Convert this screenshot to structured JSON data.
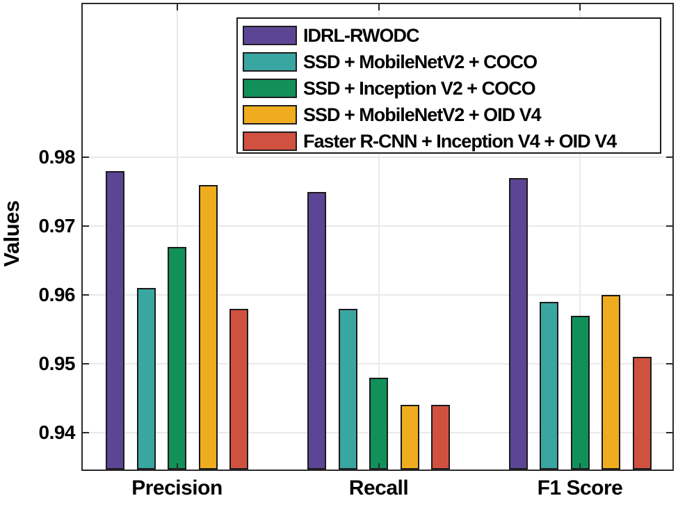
{
  "figure": {
    "background": "#ffffff",
    "axis_color": "#2a2a2a",
    "grid_color": "#e9e9e9",
    "bar_edge_color": "#1a1a1a",
    "text_color": "#000000"
  },
  "chart_data": {
    "type": "bar",
    "title": "",
    "xlabel": "",
    "ylabel": "Values",
    "categories": [
      "Precision",
      "Recall",
      "F1 Score"
    ],
    "series": [
      {
        "name": "IDRL-RWODC",
        "color": "#5d4596",
        "values": [
          0.978,
          0.975,
          0.977
        ]
      },
      {
        "name": "SSD + MobileNetV2 + COCO",
        "color": "#3aa6a1",
        "values": [
          0.961,
          0.958,
          0.959
        ]
      },
      {
        "name": "SSD + Inception V2 + COCO",
        "color": "#12905a",
        "values": [
          0.967,
          0.948,
          0.957
        ]
      },
      {
        "name": "SSD + MobileNetV2 + OID V4",
        "color": "#efac1e",
        "values": [
          0.976,
          0.944,
          0.96
        ]
      },
      {
        "name": "Faster R-CNN + Inception V4 + OID V4",
        "color": "#d05140",
        "values": [
          0.958,
          0.944,
          0.951
        ]
      }
    ],
    "yticks": [
      0.94,
      0.95,
      0.96,
      0.97,
      0.98
    ],
    "ytick_labels": [
      "0.94",
      "0.95",
      "0.96",
      "0.97",
      "0.98"
    ],
    "ylim": [
      0.9346,
      1.0023
    ],
    "grid": true,
    "legend_position": "top-right-inside"
  }
}
